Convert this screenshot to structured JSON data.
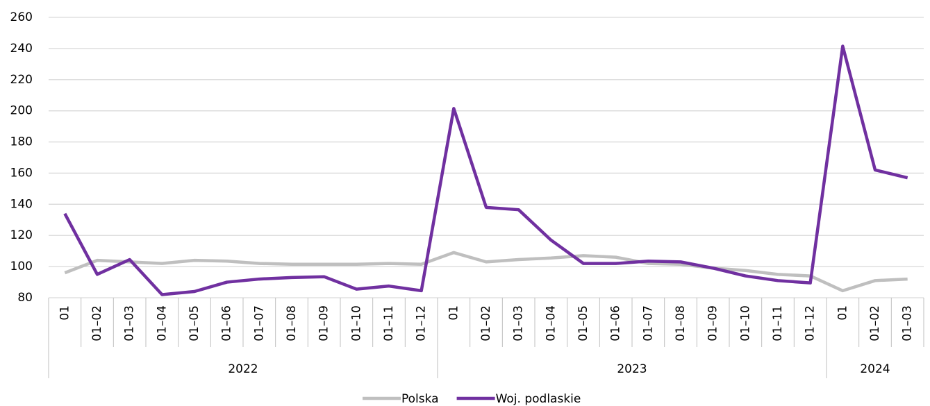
{
  "chart_data": {
    "type": "line",
    "categories": [
      "01",
      "01–02",
      "01–03",
      "01–04",
      "01–05",
      "01–06",
      "01–07",
      "01–08",
      "01–09",
      "01–10",
      "01–11",
      "01–12",
      "01",
      "01–02",
      "01–03",
      "01–04",
      "01–05",
      "01–06",
      "01–07",
      "01–08",
      "01–09",
      "01–10",
      "01–11",
      "01–12",
      "01",
      "01–02",
      "01–03"
    ],
    "groups": [
      {
        "label": "2022",
        "span": 12
      },
      {
        "label": "2023",
        "span": 12
      },
      {
        "label": "2024",
        "span": 3
      }
    ],
    "series": [
      {
        "name": "Polska",
        "color": "#bfbfbf",
        "values": [
          96,
          104,
          103,
          102,
          104,
          103.5,
          102,
          101.5,
          101.5,
          101.5,
          102,
          101.5,
          109,
          103,
          104.5,
          105.5,
          107,
          106,
          102,
          101.5,
          99,
          97.5,
          95,
          94,
          84.5,
          91,
          92
        ]
      },
      {
        "name": "Woj. podlaskie",
        "color": "#7030a0",
        "values": [
          134,
          95,
          104.5,
          82,
          84,
          90,
          92,
          93,
          93.5,
          85.5,
          87.5,
          84.5,
          201.5,
          138,
          136.5,
          117,
          102,
          102,
          103.5,
          103,
          99,
          94,
          91,
          89.5,
          241.5,
          162,
          157
        ]
      }
    ],
    "ylim": [
      80,
      260
    ],
    "yticks": [
      80,
      100,
      120,
      140,
      160,
      180,
      200,
      220,
      240,
      260
    ],
    "grid": true,
    "legend": "bottom"
  }
}
